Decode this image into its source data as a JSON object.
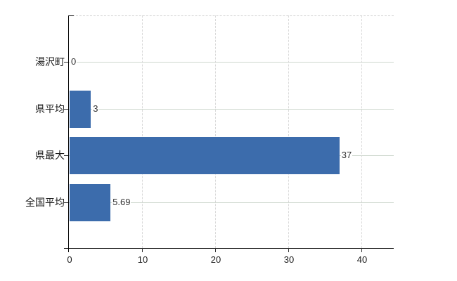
{
  "chart_data": {
    "type": "bar",
    "orientation": "horizontal",
    "title": "",
    "xlabel": "",
    "ylabel": "",
    "categories": [
      "湯沢町",
      "県平均",
      "県最大",
      "全国平均"
    ],
    "values": [
      0,
      3,
      37,
      5.69
    ],
    "value_labels": [
      "0",
      "3",
      "37",
      "5.69"
    ],
    "x_ticks": [
      "0",
      "10",
      "20",
      "30",
      "40"
    ],
    "x_tick_values": [
      0,
      10,
      20,
      30,
      40
    ],
    "xlim": [
      0,
      44.4
    ],
    "grid": true,
    "legend": false,
    "colors": {
      "background": "#FFFFFF",
      "bar": "#3C6CAC",
      "h_grid": "#CFD8CF",
      "v_grid": "#D9D9D9",
      "top_border": "#D0D0D0",
      "axis": "#000000",
      "tick": "#333333",
      "value_label": "#333333",
      "tick_label": "#1A1A1A"
    }
  }
}
